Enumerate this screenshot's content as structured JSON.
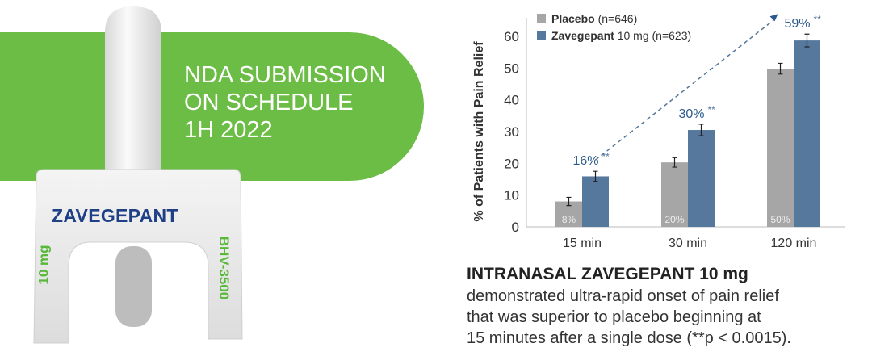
{
  "banner": {
    "lines": [
      "NDA SUBMISSION",
      "ON SCHEDULE",
      "1H 2022"
    ],
    "color": "#6cbd45"
  },
  "device": {
    "brand": "ZAVEGEPANT",
    "dose": "10 mg",
    "code": "BHV-3500"
  },
  "chart_data": {
    "type": "bar",
    "categories": [
      "15 min",
      "30 min",
      "120 min"
    ],
    "ylabel": "% of Patients with Pain Relief",
    "ylim": [
      0,
      60
    ],
    "yticks": [
      0,
      10,
      20,
      30,
      40,
      50,
      60
    ],
    "legend_position": "top-left",
    "series": [
      {
        "name": "Placebo",
        "name_suffix": "(n=646)",
        "color": "#a6a6a6",
        "values": [
          8,
          20.3,
          49.8
        ],
        "error": [
          1.3,
          1.5,
          1.7
        ],
        "data_labels": [
          "8%",
          "20%",
          "50%"
        ]
      },
      {
        "name": "Zavegepant",
        "name_suffix": "10 mg (n=623)",
        "color": "#56789c",
        "values": [
          15.9,
          30.5,
          58.7
        ],
        "error": [
          1.6,
          1.8,
          2.0
        ],
        "data_labels": [
          "16%",
          "30%",
          "59%"
        ],
        "label_mark": "**"
      }
    ],
    "trend_arrow": "dashed line from 16% to 59%"
  },
  "caption": {
    "title": "INTRANASAL ZAVEGEPANT 10 mg",
    "lines": [
      "demonstrated ultra-rapid onset of pain relief",
      "that was superior to placebo beginning at",
      "15 minutes after a single dose (**p < 0.0015)."
    ]
  }
}
